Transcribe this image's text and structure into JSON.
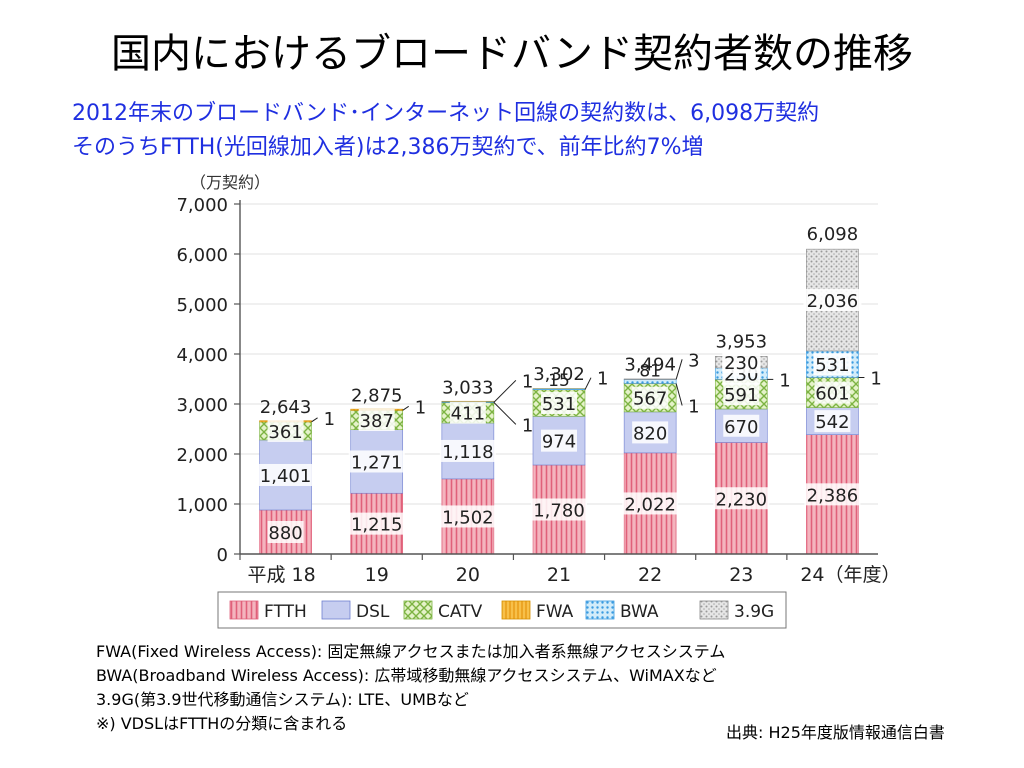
{
  "title": "国内におけるブロードバンド契約者数の推移",
  "subtitle_lines": [
    "2012年末のブロードバンド･インターネット回線の契約数は、6,098万契約",
    "そのうちFTTH(光回線加入者)は2,386万契約で、前年比約7%増"
  ],
  "notes": [
    "FWA(Fixed Wireless Access): 固定無線アクセスまたは加入者系無線アクセスシステム",
    "BWA(Broadband Wireless Access): 広帯域移動無線アクセスシステム、WiMAXなど",
    "3.9G(第3.9世代移動通信システム): LTE、UMBなど",
    "※) VDSLはFTTHの分類に含まれる"
  ],
  "source": "出典: H25年度版情報通信白書",
  "colors": {
    "ftth": "#f4b4be",
    "ftth_line": "#e0607a",
    "dsl": "#c6cdf0",
    "dsl_line": "#6f7fd0",
    "catv": "#cfe6a6",
    "catv_line": "#7cb342",
    "fwa": "#f7c04a",
    "bwa": "#a8d8f5",
    "g39": "#d9d9d9",
    "axis": "#555555"
  },
  "chart_data": {
    "type": "bar",
    "stacked": true,
    "ylabel": "（万契約）",
    "categories": [
      "平成 18",
      "19",
      "20",
      "21",
      "22",
      "23",
      "24（年度）"
    ],
    "ylim": [
      0,
      7000
    ],
    "yticks": [
      "0",
      "1,000",
      "2,000",
      "3,000",
      "4,000",
      "5,000",
      "6,000",
      "7,000"
    ],
    "series": [
      {
        "name": "FTTH",
        "values": [
          880,
          1215,
          1502,
          1780,
          2022,
          2230,
          2386
        ],
        "labels": [
          "880",
          "1,215",
          "1,502",
          "1,780",
          "2,022",
          "2,230",
          "2,386"
        ]
      },
      {
        "name": "DSL",
        "values": [
          1401,
          1271,
          1118,
          974,
          820,
          670,
          542
        ],
        "labels": [
          "1,401",
          "1,271",
          "1,118",
          "974",
          "820",
          "670",
          "542"
        ]
      },
      {
        "name": "CATV",
        "values": [
          361,
          387,
          411,
          531,
          567,
          591,
          601
        ],
        "labels": [
          "361",
          "387",
          "411",
          "531",
          "567",
          "591",
          "601"
        ]
      },
      {
        "name": "FWA",
        "values": [
          1,
          1,
          1,
          1,
          1,
          1,
          1
        ],
        "labels": [
          "1",
          "1",
          "1",
          "1",
          "1",
          "1",
          "1"
        ]
      },
      {
        "name": "BWA",
        "values": [
          0,
          0,
          1,
          15,
          81,
          230,
          531
        ],
        "labels": [
          "",
          "",
          "1",
          "15",
          "81",
          "230",
          "531"
        ]
      },
      {
        "name": "3.9G",
        "values": [
          0,
          0,
          0,
          0,
          3,
          230,
          2036
        ],
        "labels": [
          "",
          "",
          "",
          "",
          "3",
          "230",
          "2,036"
        ]
      }
    ],
    "totals": [
      "2,643",
      "2,875",
      "3,033",
      "3,302",
      "3,494",
      "3,953",
      "6,098"
    ],
    "legend_position": "bottom",
    "grid": true
  }
}
